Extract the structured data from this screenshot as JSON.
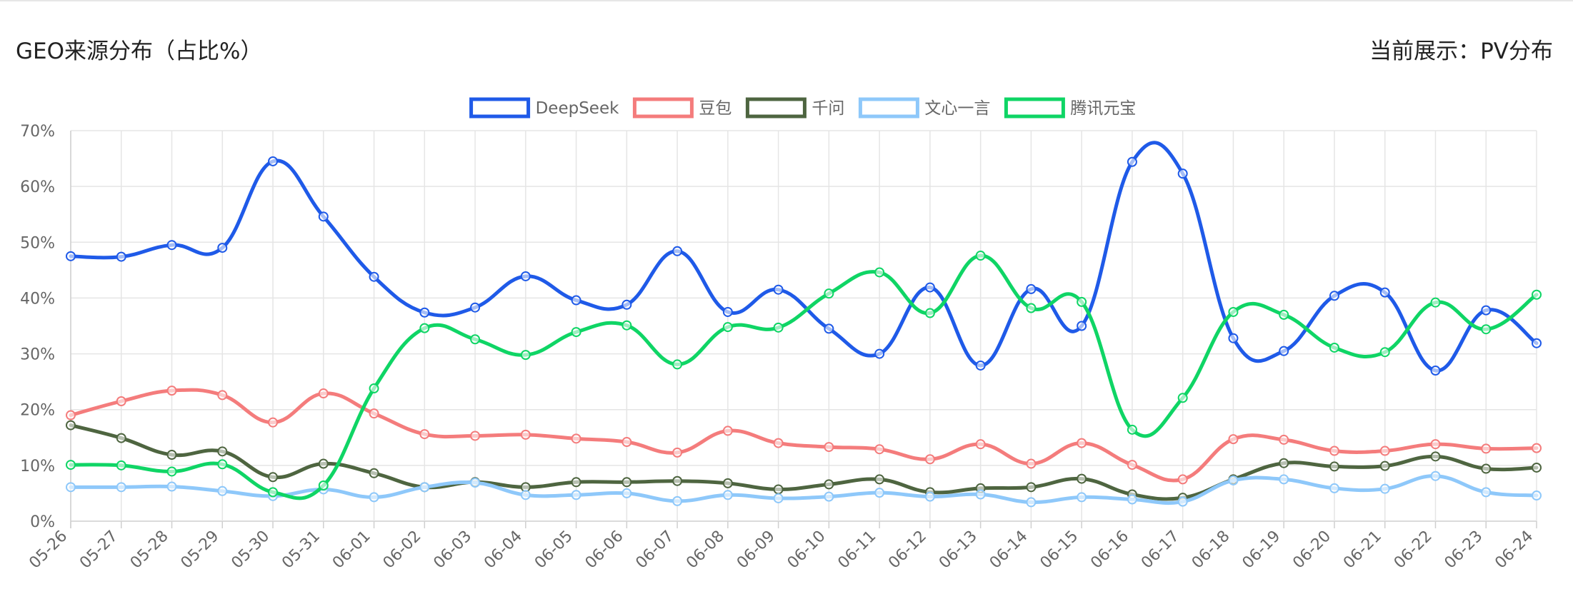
{
  "header": {
    "title": "GEO来源分布（占比%）",
    "display_label": "当前展示：PV分布"
  },
  "chart_data": {
    "type": "line",
    "title": "GEO来源分布（占比%）",
    "ylim": [
      0,
      70
    ],
    "y_ticks": [
      "0%",
      "10%",
      "20%",
      "30%",
      "40%",
      "50%",
      "60%",
      "70%"
    ],
    "grid": true,
    "legend_position": "top-center",
    "categories": [
      "05-26",
      "05-27",
      "05-28",
      "05-29",
      "05-30",
      "05-31",
      "06-01",
      "06-02",
      "06-03",
      "06-04",
      "06-05",
      "06-06",
      "06-07",
      "06-08",
      "06-09",
      "06-10",
      "06-11",
      "06-12",
      "06-13",
      "06-14",
      "06-15",
      "06-16",
      "06-17",
      "06-18",
      "06-19",
      "06-20",
      "06-21",
      "06-22",
      "06-23",
      "06-24"
    ],
    "series": [
      {
        "name": "DeepSeek",
        "color": "#1f5ae8",
        "values": [
          47.5,
          47.4,
          49.5,
          49.0,
          64.5,
          54.6,
          43.8,
          37.4,
          38.3,
          43.9,
          39.6,
          38.8,
          48.4,
          37.5,
          41.5,
          34.5,
          30.0,
          41.9,
          27.9,
          41.6,
          35.0,
          64.4,
          62.3,
          32.8,
          30.5,
          40.4,
          41.0,
          27.0,
          37.8,
          31.9
        ]
      },
      {
        "name": "豆包",
        "color": "#f47c7c",
        "values": [
          19.0,
          21.5,
          23.4,
          22.6,
          17.7,
          22.9,
          19.3,
          15.6,
          15.3,
          15.5,
          14.8,
          14.2,
          12.3,
          16.2,
          14.0,
          13.3,
          12.9,
          11.1,
          13.8,
          10.3,
          14.0,
          10.1,
          7.5,
          14.7,
          14.6,
          12.6,
          12.6,
          13.8,
          13.0,
          13.1
        ]
      },
      {
        "name": "千问",
        "color": "#4e6540",
        "values": [
          17.2,
          14.9,
          11.9,
          12.5,
          7.9,
          10.3,
          8.6,
          6.1,
          7.0,
          6.1,
          7.0,
          7.0,
          7.2,
          6.8,
          5.7,
          6.6,
          7.5,
          5.2,
          5.9,
          6.1,
          7.6,
          4.8,
          4.2,
          7.5,
          10.4,
          9.8,
          9.9,
          11.6,
          9.4,
          9.6
        ]
      },
      {
        "name": "文心一言",
        "color": "#8ec8fa",
        "values": [
          6.1,
          6.1,
          6.2,
          5.4,
          4.5,
          5.7,
          4.3,
          6.1,
          6.9,
          4.7,
          4.7,
          5.0,
          3.6,
          4.7,
          4.1,
          4.4,
          5.1,
          4.4,
          4.8,
          3.4,
          4.3,
          3.9,
          3.5,
          7.3,
          7.5,
          5.9,
          5.8,
          8.1,
          5.2,
          4.6
        ]
      },
      {
        "name": "腾讯元宝",
        "color": "#0fd565",
        "values": [
          10.1,
          10.0,
          8.9,
          10.2,
          5.2,
          6.4,
          23.8,
          34.6,
          32.6,
          29.8,
          33.9,
          35.1,
          28.1,
          34.8,
          34.7,
          40.8,
          44.6,
          37.3,
          47.6,
          38.2,
          39.3,
          16.4,
          22.1,
          37.5,
          37.0,
          31.1,
          30.3,
          39.2,
          34.4,
          40.6
        ]
      }
    ]
  }
}
